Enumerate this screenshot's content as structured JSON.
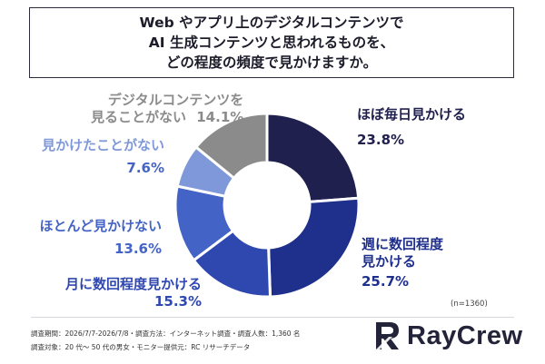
{
  "title_lines": [
    "Web やアプリ上のデジタルコンテンツで",
    "AI 生成コンテンツと思われるものを、",
    "どの程度の頻度で見かけますか。"
  ],
  "chart_data": {
    "type": "pie",
    "donut": true,
    "start_angle_deg": 0,
    "direction": "clockwise",
    "slices": [
      {
        "label_lines": [
          "ほぼ毎日見かける"
        ],
        "value": 23.8,
        "value_label": "23.8%",
        "color": "#20204f"
      },
      {
        "label_lines": [
          "週に数回程度",
          "見かける"
        ],
        "value": 25.7,
        "value_label": "25.7%",
        "color": "#1f2f8c"
      },
      {
        "label_lines": [
          "月に数回程度見かける"
        ],
        "value": 15.3,
        "value_label": "15.3%",
        "color": "#2f48b0"
      },
      {
        "label_lines": [
          "ほとんど見かけない"
        ],
        "value": 13.6,
        "value_label": "13.6%",
        "color": "#4463c6"
      },
      {
        "label_lines": [
          "見かけたことがない"
        ],
        "value": 7.6,
        "value_label": "7.6%",
        "color": "#7f98d9"
      },
      {
        "label_lines": [
          "デジタルコンテンツを",
          "見ることがない"
        ],
        "value": 14.1,
        "value_label": "14.1%",
        "color": "#8b8b8b"
      }
    ]
  },
  "sample_note": "(n=1360)",
  "footer_lines": [
    "調査期間：2026/7/7-2026/7/8・調査方法：インターネット調査・調査人数：1,360 名",
    "調査対象：20 代～ 50 代の男女・モニター提供元：RC リサーチデータ"
  ],
  "logo": {
    "text": "RayCrew",
    "icon": "raycrew-logo-icon"
  }
}
